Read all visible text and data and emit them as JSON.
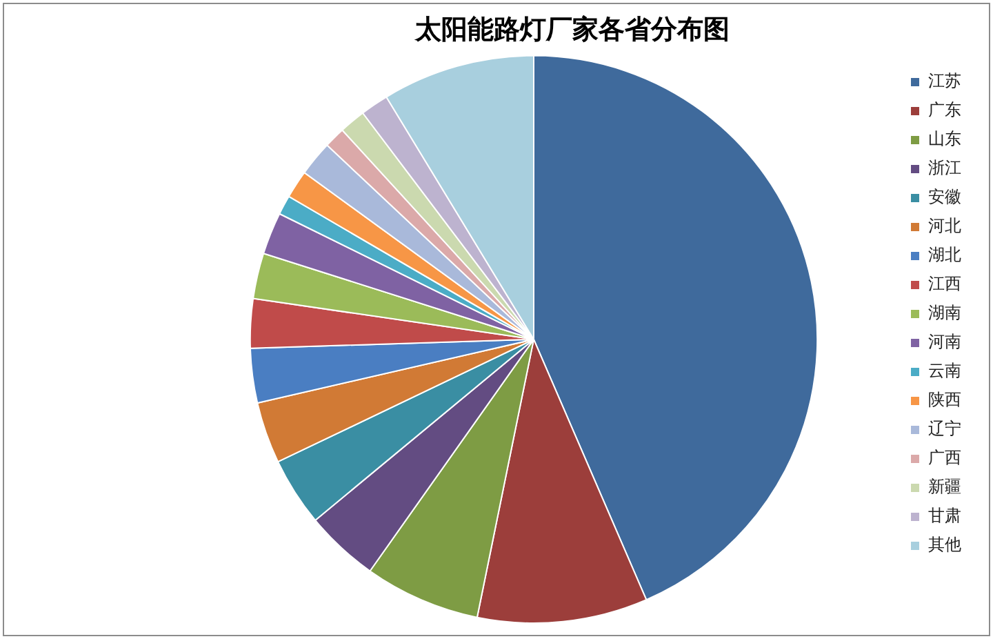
{
  "chart_data": {
    "type": "pie",
    "title": "太阳能路灯厂家各省分布图",
    "categories": [
      "江苏",
      "广东",
      "山东",
      "浙江",
      "安徽",
      "河北",
      "湖北",
      "江西",
      "湖南",
      "河南",
      "云南",
      "陕西",
      "辽宁",
      "广西",
      "新疆",
      "甘肃",
      "其他"
    ],
    "values": [
      43.5,
      9.7,
      6.6,
      4.2,
      3.9,
      3.5,
      3.1,
      2.8,
      2.6,
      2.4,
      1.1,
      1.6,
      2.0,
      1.2,
      1.5,
      1.6,
      8.7
    ],
    "colors": [
      "#3f6a9c",
      "#9c3e3b",
      "#7e9c44",
      "#634c82",
      "#3a8ea3",
      "#d17a35",
      "#4a7ec2",
      "#c04b4a",
      "#9bbb59",
      "#7f62a3",
      "#4bacc6",
      "#f79646",
      "#a9b9da",
      "#dba9a9",
      "#cbd9af",
      "#bdb3cf",
      "#a8cfde"
    ],
    "legend": "right"
  }
}
